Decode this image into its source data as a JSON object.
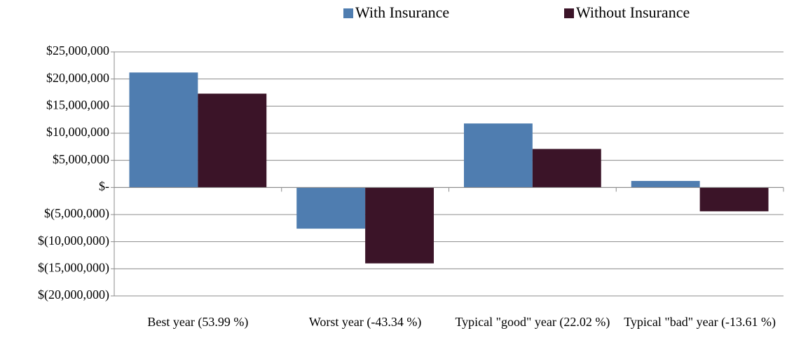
{
  "chart_data": {
    "type": "bar",
    "categories": [
      "Best year (53.99 %)",
      "Worst year (-43.34 %)",
      "Typical \"good\" year (22.02 %)",
      "Typical \"bad\" year (-13.61 %)"
    ],
    "series": [
      {
        "name": "With Insurance",
        "color": "#4f7db0",
        "values": [
          21200000,
          -7600000,
          11800000,
          1200000
        ]
      },
      {
        "name": "Without Insurance",
        "color": "#3b1428",
        "values": [
          17300000,
          -14000000,
          7100000,
          -4400000
        ]
      }
    ],
    "ylim": [
      -20000000,
      25000000
    ],
    "yticks": [
      {
        "value": -20000000,
        "label": "$(20,000,000)"
      },
      {
        "value": -15000000,
        "label": "$(15,000,000)"
      },
      {
        "value": -10000000,
        "label": "$(10,000,000)"
      },
      {
        "value": -5000000,
        "label": "$(5,000,000)"
      },
      {
        "value": 0,
        "label": "$-"
      },
      {
        "value": 5000000,
        "label": "$5,000,000"
      },
      {
        "value": 10000000,
        "label": "$10,000,000"
      },
      {
        "value": 15000000,
        "label": "$15,000,000"
      },
      {
        "value": 20000000,
        "label": "$20,000,000"
      },
      {
        "value": 25000000,
        "label": "$25,000,000"
      }
    ],
    "grid": true,
    "legend": "top"
  }
}
